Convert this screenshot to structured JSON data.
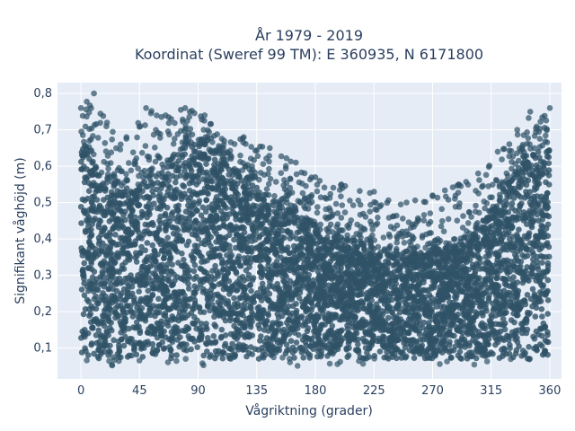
{
  "chart_data": {
    "type": "scatter",
    "title_line1": "År 1979 - 2019",
    "title_line2": "Koordinat (Sweref 99 TM): E 360935, N 6171800",
    "xlabel": "Vågriktning (grader)",
    "ylabel": "Signifikant våghöjd (m)",
    "xlim": [
      -18,
      369
    ],
    "ylim": [
      0.015,
      0.83
    ],
    "x_ticks": [
      0,
      45,
      90,
      135,
      180,
      225,
      270,
      315,
      360
    ],
    "x_tick_labels": [
      "0",
      "45",
      "90",
      "135",
      "180",
      "225",
      "270",
      "315",
      "360"
    ],
    "y_ticks": [
      0.1,
      0.2,
      0.3,
      0.4,
      0.5,
      0.6,
      0.7,
      0.8
    ],
    "y_tick_labels": [
      "0,1",
      "0,2",
      "0,3",
      "0,4",
      "0,5",
      "0,6",
      "0,7",
      "0,8"
    ],
    "grid": true,
    "marker_color": "#2f5267",
    "plot_background": "#e5ecf6",
    "upper_envelope": [
      {
        "x": 0,
        "y": 0.76
      },
      {
        "x": 10,
        "y": 0.8
      },
      {
        "x": 20,
        "y": 0.72
      },
      {
        "x": 35,
        "y": 0.68
      },
      {
        "x": 50,
        "y": 0.76
      },
      {
        "x": 65,
        "y": 0.74
      },
      {
        "x": 80,
        "y": 0.76
      },
      {
        "x": 95,
        "y": 0.74
      },
      {
        "x": 110,
        "y": 0.67
      },
      {
        "x": 125,
        "y": 0.68
      },
      {
        "x": 145,
        "y": 0.65
      },
      {
        "x": 165,
        "y": 0.61
      },
      {
        "x": 180,
        "y": 0.57
      },
      {
        "x": 200,
        "y": 0.55
      },
      {
        "x": 225,
        "y": 0.53
      },
      {
        "x": 250,
        "y": 0.5
      },
      {
        "x": 270,
        "y": 0.52
      },
      {
        "x": 290,
        "y": 0.55
      },
      {
        "x": 305,
        "y": 0.58
      },
      {
        "x": 320,
        "y": 0.64
      },
      {
        "x": 335,
        "y": 0.7
      },
      {
        "x": 345,
        "y": 0.75
      },
      {
        "x": 360,
        "y": 0.76
      }
    ],
    "dense_core_upper": [
      {
        "x": 0,
        "y": 0.66
      },
      {
        "x": 20,
        "y": 0.55
      },
      {
        "x": 40,
        "y": 0.54
      },
      {
        "x": 60,
        "y": 0.58
      },
      {
        "x": 80,
        "y": 0.66
      },
      {
        "x": 95,
        "y": 0.66
      },
      {
        "x": 110,
        "y": 0.6
      },
      {
        "x": 130,
        "y": 0.56
      },
      {
        "x": 150,
        "y": 0.5
      },
      {
        "x": 180,
        "y": 0.44
      },
      {
        "x": 210,
        "y": 0.39
      },
      {
        "x": 240,
        "y": 0.37
      },
      {
        "x": 270,
        "y": 0.37
      },
      {
        "x": 300,
        "y": 0.41
      },
      {
        "x": 320,
        "y": 0.5
      },
      {
        "x": 340,
        "y": 0.62
      },
      {
        "x": 360,
        "y": 0.66
      }
    ],
    "lower_bound": 0.07
  }
}
